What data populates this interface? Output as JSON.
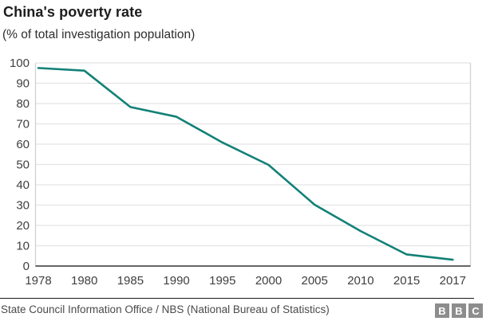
{
  "header": {
    "title": "China's poverty rate",
    "subtitle": "(% of total investigation population)"
  },
  "chart_data": {
    "type": "line",
    "title": "China's poverty rate",
    "subtitle": "(% of total investigation population)",
    "categories": [
      "1978",
      "1980",
      "1985",
      "1990",
      "1995",
      "2000",
      "2005",
      "2010",
      "2015",
      "2017"
    ],
    "series": [
      {
        "name": "Poverty rate (% of total investigation population)",
        "values": [
          97.5,
          96.2,
          78.3,
          73.5,
          60.8,
          49.8,
          30.2,
          17.2,
          5.7,
          3.1
        ]
      }
    ],
    "xlabel": "",
    "ylabel": "",
    "ylim": [
      0,
      100
    ],
    "y_ticks": [
      0,
      10,
      20,
      30,
      40,
      50,
      60,
      70,
      80,
      90,
      100
    ],
    "grid": true,
    "legend": "none",
    "line_color": "#128177"
  },
  "colors": {
    "line": "#128177",
    "gridline": "#e4e4e4",
    "plot_border": "#d2d2d2",
    "axis_line": "#333333",
    "tick_text": "#404040",
    "divider": "#1a1a1a",
    "logo_bg": "#8d8d8d"
  },
  "footer": {
    "source": "State Council Information Office / NBS (National Bureau of Statistics)",
    "logo_letters": [
      "B",
      "B",
      "C"
    ]
  }
}
